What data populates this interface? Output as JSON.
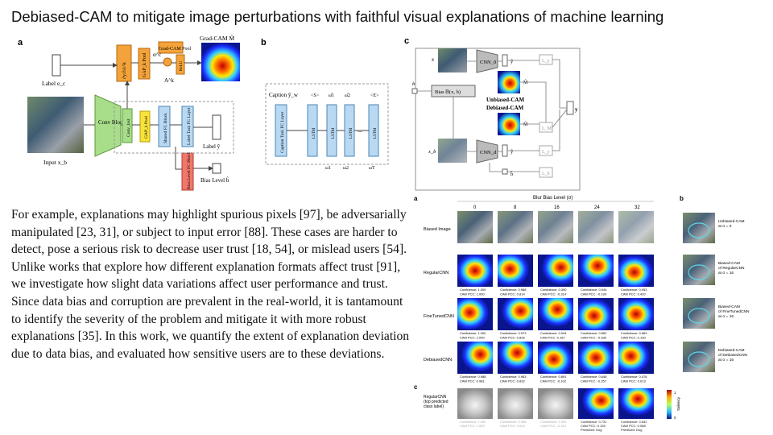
{
  "slide_title": "Debiased-CAM to mitigate image perturbations with faithful visual explanations of machine learning",
  "paragraph": "For example, explanations may highlight spurious pixels [97], be adversarially manipulated [23, 31], or subject to input error [88]. These cases are harder to detect, pose a serious risk to decrease user trust [18, 54], or mislead users [54]. Unlike works that explore how different explanation formats affect trust [91], we investigate how slight data variations affect user performance and trust. Since data bias and corruption are prevalent in the real-world, it is tantamount to identify the severity of the problem and mitigate it with more robust explanations [35]. In this work, we quantify the extent of explanation deviation due to data bias, and evaluated how sensitive users are to these deviations.",
  "fig_a": {
    "panel": "a",
    "label_ec": "Label e_c",
    "grad_op": "∂y/∂A^k",
    "gap_pool": "GAP_k Pool",
    "alpha": "α^c",
    "gradcam_pool": "Grad-CAM Pool",
    "relu": "ReLU",
    "ak": "A^k",
    "gradcam_title": "Grad-CAM M̂",
    "conv_blocks": "Conv Blocks",
    "conv_last": "Conv_last",
    "gap_pool2": "GAP_k Pool",
    "shared_fc": "Shared FC Block",
    "label_task": "Label Task FC Layer",
    "label_y": "Label ŷ",
    "bias_level_fc": "Bias Level FC Block",
    "bias_level_out": "Bias Level b̂",
    "input_label": "Input x_b"
  },
  "fig_b": {
    "panel": "b",
    "caption": "Caption ŷ_w",
    "tokens": [
      "<S>",
      "ω̂1",
      "ω̂2",
      "<E>"
    ],
    "caption_fc": "Caption Task FC Layer",
    "lstm": "LSTM",
    "dots": "...",
    "inputs": [
      "ω1",
      "ω2",
      "ωT"
    ]
  },
  "fig_c": {
    "panel": "c",
    "x": "x",
    "cnn0": "CNN_0",
    "y_hat": "ŷ",
    "ly": "L_y",
    "b": "b",
    "bias_fn": "Bias 𝔹(x, b)",
    "unbiased_cam": "Unbiased-CAM",
    "debiased_cam": "Debiased-CAM",
    "m_hat": "M̂",
    "lm": "L_M",
    "y": "y",
    "xb": "x_b",
    "cnnd": "CNN_d",
    "yd": "ŷ",
    "b_hat": "b̂",
    "lb": "L_b"
  },
  "fig_grid": {
    "panel_a": "a",
    "panel_b": "b",
    "panel_c": "c",
    "header": "Blur Bias Level (σ)",
    "levels": [
      "0",
      "8",
      "16",
      "24",
      "32"
    ],
    "rows": [
      {
        "label": "Biased Image",
        "captions": []
      },
      {
        "label": "RegularCNN",
        "captions": [
          [
            "Confidence: 1.000",
            "CAM PCC: 1.000"
          ],
          [
            "Confidence: 0.988",
            "CAM PCC: 0.814"
          ],
          [
            "Confidence: 0.390",
            "CAM PCC: -0.314"
          ],
          [
            "Confidence: 0.044",
            "CAM PCC: -0.199"
          ],
          [
            "Confidence: 0.053",
            "CAM PCC: 0.420"
          ]
        ]
      },
      {
        "label": "FineTunedCNN",
        "captions": [
          [
            "Confidence: 1.000",
            "CAM PCC: 1.000"
          ],
          [
            "Confidence: 0.973",
            "CAM PCC: 0.826"
          ],
          [
            "Confidence: 0.944",
            "CAM PCC: 0.167"
          ],
          [
            "Confidence: 0.562",
            "CAM PCC: -0.330"
          ],
          [
            "Confidence: 0.583",
            "CAM PCC: 0.130"
          ]
        ]
      },
      {
        "label": "DebiasedCNN",
        "captions": [
          [
            "Confidence: 0.988",
            "CAM PCC: 0.981"
          ],
          [
            "Confidence: 0.983",
            "CAM PCC: 0.832"
          ],
          [
            "Confidence: 0.891",
            "CAM PCC: -0.102"
          ],
          [
            "Confidence: 0.646",
            "CAM PCC: -0.257"
          ],
          [
            "Confidence: 0.476",
            "CAM PCC: 0.013"
          ]
        ]
      }
    ],
    "c_row_label": [
      "RegularCNN",
      "(top predicted",
      "class label)"
    ],
    "c_captions": [
      [
        "Confidence: 1.000",
        "CAM PCC: 1.000",
        ""
      ],
      [
        "Confidence: 0.988",
        "CAM PCC: 0.814",
        ""
      ],
      [
        "Confidence: 0.390",
        "CAM PCC: -0.314",
        ""
      ],
      [
        "Confidence: 0.731",
        "CAM PCC: 0.126",
        "Predicted: Dog"
      ],
      [
        "Confidence: 0.642",
        "CAM PCC: 0.088",
        "Predicted: Dog"
      ]
    ],
    "colorbar_top": "1",
    "colorbar_bottom": "0",
    "colorbar_label": "Saliency",
    "b_captions": [
      [
        "Unbiased-CAM",
        "at σ = 0"
      ],
      [
        "Biased-CAM",
        "of RegularCNN",
        "at σ = 16"
      ],
      [
        "Biased-CAM",
        "of FineTunedCNN",
        "at σ = 16"
      ],
      [
        "Debiased-CAM",
        "of DebiasedCNN",
        "at σ = 16"
      ]
    ]
  }
}
